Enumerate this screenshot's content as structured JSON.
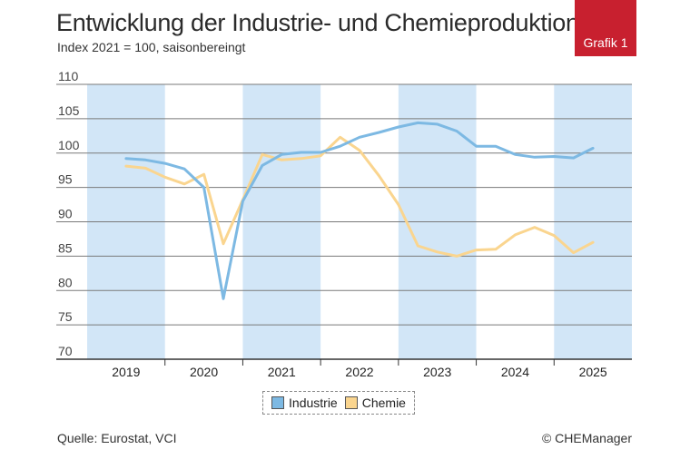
{
  "badge": "Grafik 1",
  "source": "Quelle: Eurostat, VCI",
  "copyright": "© CHEManager",
  "colors": {
    "industrie": "#7db9e3",
    "chemie": "#fad58f",
    "band": "#d2e6f7",
    "badge": "#c8202f"
  },
  "chart_data": {
    "type": "line",
    "title": "Entwicklung der Industrie- und Chemieproduktion",
    "subtitle": "Index 2021 = 100, saisonbereingt",
    "ylim": [
      70,
      110
    ],
    "yticks": [
      110,
      105,
      100,
      95,
      90,
      85,
      80,
      75,
      70
    ],
    "x_range": [
      2018.5,
      2025.5
    ],
    "years": [
      "2019",
      "2020",
      "2021",
      "2022",
      "2023",
      "2024",
      "2025"
    ],
    "shaded_years": [
      "2019",
      "2021",
      "2023",
      "2025"
    ],
    "grid": "horizontal",
    "legend_position": "bottom-center",
    "series": [
      {
        "name": "Industrie",
        "color": "#7db9e3",
        "points": [
          [
            2019.0,
            99.2
          ],
          [
            2019.25,
            99.0
          ],
          [
            2019.5,
            98.5
          ],
          [
            2019.75,
            97.7
          ],
          [
            2020.0,
            95.0
          ],
          [
            2020.25,
            78.8
          ],
          [
            2020.5,
            93.0
          ],
          [
            2020.75,
            98.2
          ],
          [
            2021.0,
            99.8
          ],
          [
            2021.25,
            100.1
          ],
          [
            2021.5,
            100.1
          ],
          [
            2021.75,
            101.0
          ],
          [
            2022.0,
            102.3
          ],
          [
            2022.25,
            103.0
          ],
          [
            2022.5,
            103.8
          ],
          [
            2022.75,
            104.4
          ],
          [
            2023.0,
            104.2
          ],
          [
            2023.25,
            103.2
          ],
          [
            2023.5,
            101.0
          ],
          [
            2023.75,
            101.0
          ],
          [
            2024.0,
            99.8
          ],
          [
            2024.25,
            99.4
          ],
          [
            2024.5,
            99.5
          ],
          [
            2024.75,
            99.3
          ],
          [
            2025.0,
            100.7
          ]
        ]
      },
      {
        "name": "Chemie",
        "color": "#fad58f",
        "points": [
          [
            2019.0,
            98.1
          ],
          [
            2019.25,
            97.8
          ],
          [
            2019.5,
            96.5
          ],
          [
            2019.75,
            95.5
          ],
          [
            2020.0,
            96.9
          ],
          [
            2020.25,
            86.8
          ],
          [
            2020.5,
            93.2
          ],
          [
            2020.75,
            99.8
          ],
          [
            2021.0,
            99.0
          ],
          [
            2021.25,
            99.2
          ],
          [
            2021.5,
            99.6
          ],
          [
            2021.75,
            102.3
          ],
          [
            2022.0,
            100.4
          ],
          [
            2022.25,
            96.7
          ],
          [
            2022.5,
            92.5
          ],
          [
            2022.75,
            86.5
          ],
          [
            2023.0,
            85.6
          ],
          [
            2023.25,
            85.0
          ],
          [
            2023.5,
            85.9
          ],
          [
            2023.75,
            86.0
          ],
          [
            2024.0,
            88.1
          ],
          [
            2024.25,
            89.2
          ],
          [
            2024.5,
            88.0
          ],
          [
            2024.75,
            85.5
          ],
          [
            2025.0,
            87.0
          ]
        ]
      }
    ]
  }
}
